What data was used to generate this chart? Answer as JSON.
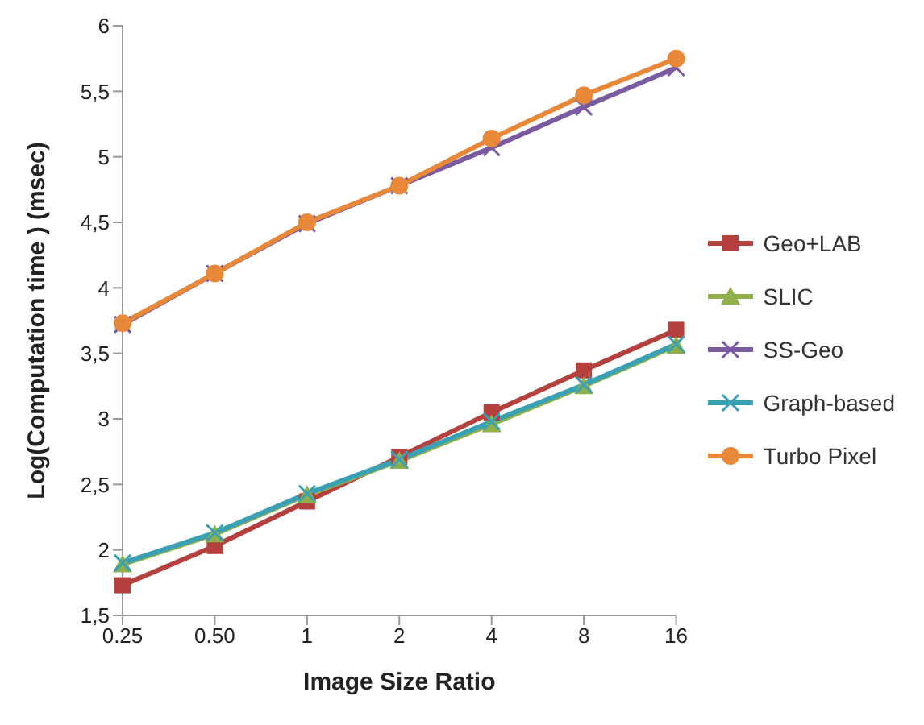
{
  "chart_data": {
    "type": "line",
    "xlabel": "Image Size Ratio",
    "ylabel": "Log(Computation time ) (msec)",
    "categories": [
      "0.25",
      "0.50",
      "1",
      "2",
      "4",
      "8",
      "16"
    ],
    "ylim": [
      1.5,
      6
    ],
    "yticks": [
      {
        "value": 1.5,
        "label": "1,5"
      },
      2,
      {
        "value": 2.5,
        "label": "2,5"
      },
      3,
      {
        "value": 3.5,
        "label": "3,5"
      },
      4,
      {
        "value": 4.5,
        "label": "4,5"
      },
      5,
      {
        "value": 5.5,
        "label": "5,5"
      },
      6
    ],
    "grid": false,
    "legend": "right",
    "series": [
      {
        "name": "Geo+LAB",
        "color": "#b5413e",
        "marker": "square",
        "values": [
          1.73,
          2.03,
          2.37,
          2.71,
          3.05,
          3.37,
          3.68
        ]
      },
      {
        "name": "SLIC",
        "color": "#8fb04a",
        "marker": "triangle",
        "values": [
          1.89,
          2.12,
          2.42,
          2.68,
          2.96,
          3.25,
          3.56
        ]
      },
      {
        "name": "SS-Geo",
        "color": "#7a5aa0",
        "marker": "cross",
        "values": [
          3.72,
          4.11,
          4.49,
          4.78,
          5.07,
          5.38,
          5.68
        ]
      },
      {
        "name": "Graph-based",
        "color": "#3aa0b4",
        "marker": "cross",
        "values": [
          1.9,
          2.13,
          2.43,
          2.69,
          2.98,
          3.26,
          3.57
        ]
      },
      {
        "name": "Turbo Pixel",
        "color": "#e8893a",
        "marker": "circle",
        "values": [
          3.73,
          4.11,
          4.5,
          4.78,
          5.14,
          5.47,
          5.75
        ]
      }
    ]
  }
}
